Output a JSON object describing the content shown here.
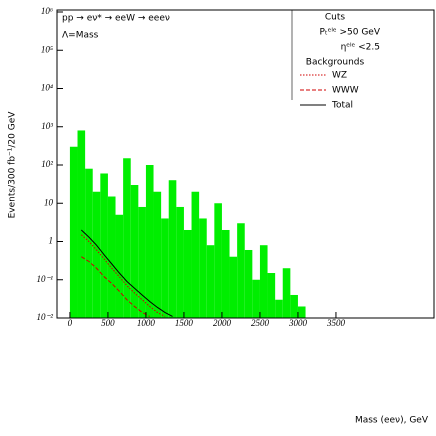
{
  "chart_data": {
    "type": "histogram",
    "title": "pp → eν* → eeW → eeeν",
    "subtitle": "Λ=Mass",
    "annotations": {
      "cuts_title": "Cuts",
      "cuts": [
        "Pₜᵉˡᵉ >50 GeV",
        "ηᵉˡᵉ <2.5"
      ],
      "backgrounds_title": "Backgrounds"
    },
    "x_label": "Mass (eeν), GeV",
    "y_label": "Events/300 fb⁻¹/20 GeV",
    "log_y": true,
    "xlim": [
      -170,
      4790
    ],
    "ylim": [
      0.01,
      1000000
    ],
    "xticks": [
      0,
      500,
      1000,
      1500,
      2000,
      2500,
      3000,
      3500
    ],
    "yticks": [
      {
        "value": 1000000,
        "label": "10⁶"
      },
      {
        "value": 100000,
        "label": "10⁵"
      },
      {
        "value": 10000,
        "label": "10⁴"
      },
      {
        "value": 1000,
        "label": "10³"
      },
      {
        "value": 100,
        "label": "10²"
      },
      10,
      1,
      {
        "value": 0.1,
        "label": "10⁻¹"
      },
      {
        "value": 0.01,
        "label": "10⁻²"
      }
    ],
    "bins": [
      0,
      100,
      200,
      300,
      400,
      500,
      600,
      700,
      800,
      900,
      1000,
      1100,
      1200,
      1300,
      1400,
      1500,
      1600,
      1700,
      1800,
      1900,
      2000,
      2100,
      2200,
      2300,
      2400,
      2500,
      2600,
      2700,
      2800,
      2900,
      3000,
      3100,
      3200
    ],
    "signal": {
      "color": "#00ee00",
      "values": [
        300,
        800,
        80,
        20,
        60,
        15,
        5,
        150,
        30,
        8,
        100,
        20,
        4,
        40,
        8,
        2,
        20,
        4,
        0.8,
        10,
        2,
        0.4,
        3,
        0.6,
        0.1,
        0.8,
        0.15,
        0.03,
        0.2,
        0.04,
        0.02,
        0.01
      ]
    },
    "series": [
      {
        "name": "WZ",
        "color": "#d00000",
        "style": "dotted",
        "values": [
          null,
          1.5,
          1,
          0.6,
          0.35,
          0.2,
          0.12,
          0.07,
          0.045,
          0.03,
          0.02,
          0.014,
          0.011,
          null,
          null,
          null,
          null,
          null,
          null,
          null,
          null,
          null,
          null,
          null,
          null,
          null,
          null,
          null,
          null,
          null,
          null,
          null
        ]
      },
      {
        "name": "WWW",
        "color": "#d00000",
        "style": "dashed",
        "values": [
          null,
          0.4,
          0.3,
          0.2,
          0.12,
          0.08,
          0.05,
          0.03,
          0.02,
          0.014,
          0.011,
          null,
          null,
          null,
          null,
          null,
          null,
          null,
          null,
          null,
          null,
          null,
          null,
          null,
          null,
          null,
          null,
          null,
          null,
          null,
          null,
          null
        ]
      },
      {
        "name": "Total",
        "color": "#000000",
        "style": "solid",
        "values": [
          null,
          2,
          1.3,
          0.8,
          0.45,
          0.26,
          0.15,
          0.09,
          0.06,
          0.04,
          0.027,
          0.019,
          0.014,
          0.011,
          null,
          null,
          null,
          null,
          null,
          null,
          null,
          null,
          null,
          null,
          null,
          null,
          null,
          null,
          null,
          null,
          null,
          null
        ]
      }
    ]
  }
}
